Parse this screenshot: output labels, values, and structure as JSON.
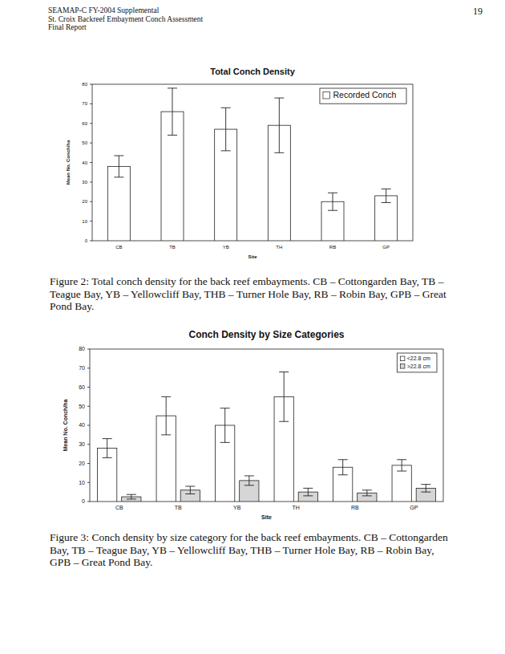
{
  "header": {
    "lines": [
      "SEAMAP-C FY-2004 Supplemental",
      "St. Croix Backreef Embayment Conch Assessment",
      "Final Report"
    ],
    "page_number": "19"
  },
  "chart_data": [
    {
      "type": "bar",
      "title": "Total Conch Density",
      "x_label": "Site",
      "y_label": "Mean No. Conch/ha",
      "categories": [
        "CB",
        "TB",
        "YB",
        "TH",
        "RB",
        "GP"
      ],
      "series": [
        {
          "name": "Recorded Conch",
          "color": "#ffffff",
          "values": [
            38,
            66,
            57,
            59,
            20,
            23
          ],
          "errors": [
            5.5,
            12,
            11,
            14,
            4.5,
            3.5
          ]
        }
      ],
      "ylim": [
        0,
        80
      ],
      "yticks": [
        0,
        10,
        20,
        30,
        40,
        50,
        60,
        70,
        80
      ],
      "grid": false,
      "legend": "top-right"
    },
    {
      "type": "bar",
      "title": "Conch Density by Size Categories",
      "x_label": "Site",
      "y_label": "Mean No. Conch/ha",
      "categories": [
        "CB",
        "TB",
        "YB",
        "TH",
        "RB",
        "GP"
      ],
      "series": [
        {
          "name": "<22.8 cm",
          "color": "#ffffff",
          "values": [
            28,
            45,
            40,
            55,
            18,
            19
          ],
          "errors": [
            5,
            10,
            9,
            13,
            4,
            3
          ]
        },
        {
          "name": ">22.8 cm",
          "color": "#d6d6d6",
          "values": [
            2.5,
            6,
            11,
            5,
            4.5,
            7
          ],
          "errors": [
            1.2,
            2,
            2.5,
            2,
            1.5,
            2
          ]
        }
      ],
      "ylim": [
        0,
        80
      ],
      "yticks": [
        0,
        10,
        20,
        30,
        40,
        50,
        60,
        70,
        80
      ],
      "grid": false,
      "legend": "top-right"
    }
  ],
  "captions": [
    "Figure 2: Total conch density for the back reef embayments. CB – Cottongarden Bay, TB – Teague Bay, YB – Yellowcliff Bay, THB – Turner Hole Bay, RB – Robin Bay, GPB – Great Pond Bay.",
    "Figure 3: Conch density by size category for the back reef embayments. CB – Cottongarden Bay, TB – Teague Bay, YB – Yellowcliff Bay, THB – Turner Hole Bay, RB – Robin Bay, GPB – Great Pond Bay."
  ]
}
